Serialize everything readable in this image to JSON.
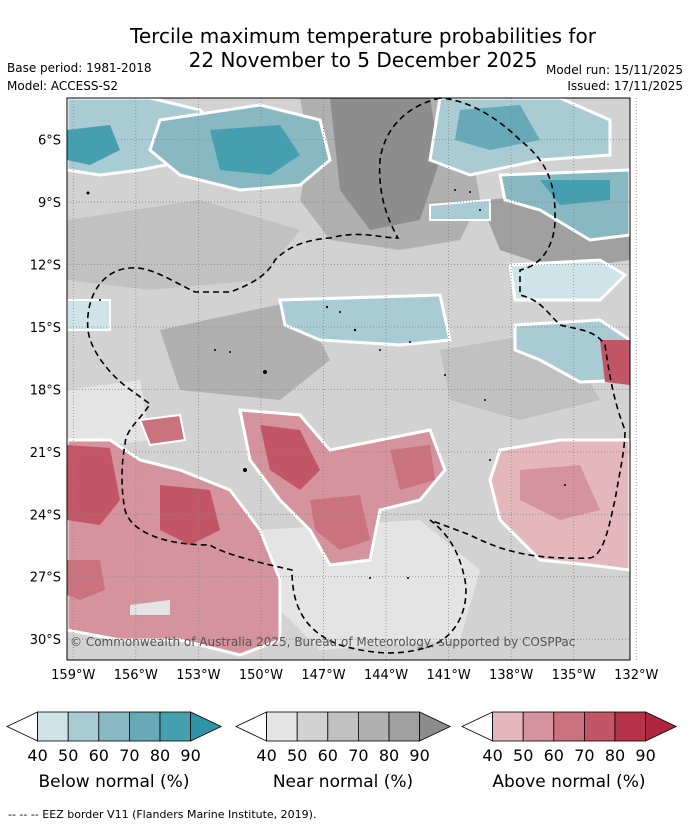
{
  "title": {
    "line1": "Tercile maximum temperature probabilities for",
    "line2": "22 November to 5 December 2025"
  },
  "meta": {
    "base_period": "Base period: 1981-2018",
    "model": "Model: ACCESS-S2",
    "model_run": "Model run: 15/11/2025",
    "issued": "Issued: 17/11/2025"
  },
  "map": {
    "copyright": "© Commonwealth of Australia 2025, Bureau of Meteorology, supported by COSPPac",
    "lon_ticks": [
      "159°W",
      "156°W",
      "153°W",
      "150°W",
      "147°W",
      "144°W",
      "141°W",
      "138°W",
      "135°W",
      "132°W"
    ],
    "lat_ticks": [
      "6°S",
      "9°S",
      "12°S",
      "15°S",
      "18°S",
      "21°S",
      "24°S",
      "27°S",
      "30°S"
    ],
    "lon_range": [
      -159.3,
      -132.3
    ],
    "lat_range": [
      -31.0,
      -4.0
    ]
  },
  "colorbars": [
    {
      "label": "Below normal (%)",
      "ticks": [
        "40",
        "50",
        "60",
        "70",
        "80",
        "90"
      ],
      "colors": [
        "#ffffff",
        "#cfe4e8",
        "#a9cbd3",
        "#88b8c2",
        "#67a9b6",
        "#459faf",
        "#2f95a6"
      ]
    },
    {
      "label": "Near normal (%)",
      "ticks": [
        "40",
        "50",
        "60",
        "70",
        "80",
        "90"
      ],
      "colors": [
        "#ffffff",
        "#e4e4e4",
        "#d2d2d2",
        "#c1c1c1",
        "#b0b0b0",
        "#a0a0a0",
        "#8d8d8d"
      ]
    },
    {
      "label": "Above normal (%)",
      "ticks": [
        "40",
        "50",
        "60",
        "70",
        "80",
        "90"
      ],
      "colors": [
        "#ffffff",
        "#e4b7bd",
        "#d5949d",
        "#cb727f",
        "#c25566",
        "#b73349",
        "#b02440"
      ]
    }
  ],
  "footer": "-- -- -- EEZ border V11 (Flanders Marine Institute, 2019)."
}
